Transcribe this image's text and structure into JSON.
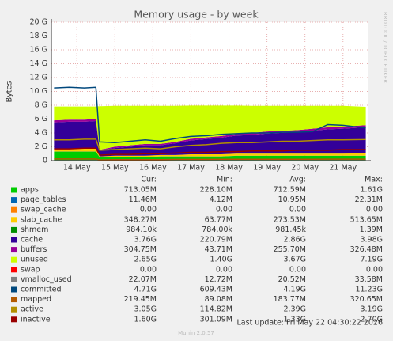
{
  "chart_data": {
    "type": "area",
    "title": "Memory usage - by week",
    "y_label": "Bytes",
    "side_note": "RRDTOOL / TOBI OETIKER",
    "last_update": "Last update: Fri May 22 04:30:22 2026",
    "footer": "Munin 2.0.57",
    "columns": [
      "Cur:",
      "Min:",
      "Avg:",
      "Max:"
    ],
    "x": [
      13.4,
      13.8,
      14.2,
      14.5,
      14.6,
      15.0,
      15.4,
      15.8,
      16.2,
      16.6,
      17.0,
      17.4,
      17.8,
      18.2,
      18.6,
      19.0,
      19.4,
      19.8,
      20.2,
      20.6,
      21.0,
      21.6
    ],
    "xlim": [
      13.33,
      21.65
    ],
    "xticks": [
      {
        "value": 14,
        "label": "14 May"
      },
      {
        "value": 15,
        "label": "15 May"
      },
      {
        "value": 16,
        "label": "16 May"
      },
      {
        "value": 17,
        "label": "17 May"
      },
      {
        "value": 18,
        "label": "18 May"
      },
      {
        "value": 19,
        "label": "19 May"
      },
      {
        "value": 20,
        "label": "20 May"
      },
      {
        "value": 21,
        "label": "21 May"
      }
    ],
    "ylim": [
      0,
      20
    ],
    "yticks": [
      {
        "value": 0,
        "label": "0"
      },
      {
        "value": 2,
        "label": "2 G"
      },
      {
        "value": 4,
        "label": "4 G"
      },
      {
        "value": 6,
        "label": "6 G"
      },
      {
        "value": 8,
        "label": "8 G"
      },
      {
        "value": 10,
        "label": "10 G"
      },
      {
        "value": 12,
        "label": "12 G"
      },
      {
        "value": 14,
        "label": "14 G"
      },
      {
        "value": 16,
        "label": "16 G"
      },
      {
        "value": 18,
        "label": "18 G"
      },
      {
        "value": 20,
        "label": "20 G"
      }
    ],
    "grid": true,
    "series": [
      {
        "name": "apps",
        "color": "#00cc00",
        "draw": "stack",
        "stats": [
          "713.05M",
          "228.10M",
          "712.59M",
          "1.61G"
        ],
        "values": [
          1.3,
          1.3,
          1.3,
          1.3,
          0.5,
          0.5,
          0.5,
          0.5,
          0.6,
          0.6,
          0.6,
          0.6,
          0.6,
          0.7,
          0.7,
          0.7,
          0.7,
          0.7,
          0.7,
          0.7,
          0.7,
          0.7
        ]
      },
      {
        "name": "page_tables",
        "color": "#0066b3",
        "draw": "stack",
        "stats": [
          "11.46M",
          "4.12M",
          "10.95M",
          "22.31M"
        ],
        "values": [
          0.02,
          0.02,
          0.02,
          0.02,
          0.01,
          0.01,
          0.01,
          0.01,
          0.01,
          0.01,
          0.01,
          0.01,
          0.01,
          0.01,
          0.01,
          0.01,
          0.01,
          0.01,
          0.01,
          0.01,
          0.01,
          0.01
        ]
      },
      {
        "name": "swap_cache",
        "color": "#ff8000",
        "draw": "stack",
        "stats": [
          "0.00",
          "0.00",
          "0.00",
          "0.00"
        ],
        "values": [
          0,
          0,
          0,
          0,
          0,
          0,
          0,
          0,
          0,
          0,
          0,
          0,
          0,
          0,
          0,
          0,
          0,
          0,
          0,
          0,
          0,
          0
        ]
      },
      {
        "name": "slab_cache",
        "color": "#ffcc00",
        "draw": "stack",
        "stats": [
          "348.27M",
          "63.77M",
          "273.53M",
          "513.65M"
        ],
        "values": [
          0.4,
          0.4,
          0.4,
          0.4,
          0.1,
          0.2,
          0.2,
          0.2,
          0.2,
          0.2,
          0.3,
          0.3,
          0.3,
          0.3,
          0.3,
          0.3,
          0.3,
          0.3,
          0.3,
          0.3,
          0.3,
          0.35
        ]
      },
      {
        "name": "shmem",
        "color": "#008f00",
        "draw": "stack",
        "stats": [
          "984.10k",
          "784.00k",
          "981.45k",
          "1.39M"
        ],
        "values": [
          0,
          0,
          0,
          0,
          0,
          0,
          0,
          0,
          0,
          0,
          0,
          0,
          0,
          0,
          0,
          0,
          0,
          0,
          0,
          0,
          0,
          0
        ]
      },
      {
        "name": "cache",
        "color": "#330099",
        "draw": "stack",
        "stats": [
          "3.76G",
          "220.79M",
          "2.86G",
          "3.98G"
        ],
        "values": [
          3.8,
          3.9,
          3.9,
          4.0,
          0.9,
          1.1,
          1.3,
          1.5,
          1.4,
          1.7,
          2.0,
          2.2,
          2.4,
          2.6,
          2.7,
          2.9,
          3.0,
          3.1,
          3.3,
          3.5,
          3.6,
          3.76
        ]
      },
      {
        "name": "buffers",
        "color": "#990099",
        "draw": "stack",
        "stats": [
          "304.75M",
          "43.71M",
          "255.70M",
          "326.48M"
        ],
        "values": [
          0.3,
          0.3,
          0.3,
          0.3,
          0.05,
          0.2,
          0.2,
          0.2,
          0.2,
          0.2,
          0.25,
          0.25,
          0.25,
          0.25,
          0.3,
          0.3,
          0.3,
          0.3,
          0.3,
          0.3,
          0.3,
          0.3
        ]
      },
      {
        "name": "unused",
        "color": "#ccff00",
        "draw": "stack",
        "stats": [
          "2.65G",
          "1.40G",
          "3.67G",
          "7.19G"
        ],
        "values": [
          2.0,
          1.9,
          1.9,
          1.8,
          6.3,
          5.9,
          5.7,
          5.5,
          5.5,
          5.2,
          4.8,
          4.6,
          4.4,
          4.1,
          3.9,
          3.7,
          3.6,
          3.5,
          3.3,
          3.1,
          3.0,
          2.65
        ]
      },
      {
        "name": "swap",
        "color": "#ff0000",
        "draw": "stack",
        "stats": [
          "0.00",
          "0.00",
          "0.00",
          "0.00"
        ],
        "values": [
          0,
          0,
          0,
          0,
          0,
          0,
          0,
          0,
          0,
          0,
          0,
          0,
          0,
          0,
          0,
          0,
          0,
          0,
          0,
          0,
          0,
          0
        ]
      },
      {
        "name": "vmalloc_used",
        "color": "#808080",
        "draw": "line",
        "stats": [
          "22.07M",
          "12.72M",
          "20.52M",
          "33.58M"
        ],
        "values": [
          0.02,
          0.02,
          0.02,
          0.02,
          0.01,
          0.02,
          0.02,
          0.02,
          0.02,
          0.02,
          0.02,
          0.02,
          0.02,
          0.02,
          0.02,
          0.02,
          0.02,
          0.02,
          0.02,
          0.02,
          0.02,
          0.02
        ]
      },
      {
        "name": "committed",
        "color": "#00487d",
        "draw": "line",
        "stats": [
          "4.71G",
          "609.43M",
          "4.19G",
          "11.23G"
        ],
        "values": [
          10.5,
          10.6,
          10.5,
          10.6,
          2.7,
          2.6,
          2.8,
          3.0,
          2.8,
          3.2,
          3.5,
          3.6,
          3.8,
          3.9,
          4.0,
          4.0,
          4.1,
          4.1,
          4.2,
          5.2,
          5.1,
          4.71
        ]
      },
      {
        "name": "mapped",
        "color": "#b35a00",
        "draw": "line",
        "stats": [
          "219.45M",
          "89.08M",
          "183.77M",
          "320.65M"
        ],
        "values": [
          0.25,
          0.25,
          0.25,
          0.25,
          0.1,
          0.15,
          0.15,
          0.15,
          0.15,
          0.18,
          0.18,
          0.18,
          0.2,
          0.2,
          0.2,
          0.2,
          0.2,
          0.2,
          0.2,
          0.22,
          0.22,
          0.22
        ]
      },
      {
        "name": "active",
        "color": "#b38f00",
        "draw": "line",
        "stats": [
          "3.05G",
          "114.82M",
          "2.39G",
          "3.19G"
        ],
        "values": [
          3.0,
          3.0,
          3.1,
          3.1,
          1.5,
          1.6,
          1.7,
          1.8,
          1.7,
          2.0,
          2.2,
          2.3,
          2.5,
          2.6,
          2.6,
          2.7,
          2.8,
          2.8,
          2.9,
          3.0,
          3.0,
          3.05
        ]
      },
      {
        "name": "inactive",
        "color": "#990000",
        "draw": "line",
        "stats": [
          "1.60G",
          "301.09M",
          "1.33G",
          "2.70G"
        ],
        "values": [
          1.7,
          1.7,
          1.8,
          1.8,
          0.8,
          0.9,
          0.9,
          1.0,
          1.0,
          1.1,
          1.2,
          1.2,
          1.3,
          1.3,
          1.4,
          1.4,
          1.4,
          1.5,
          1.5,
          1.5,
          1.6,
          1.6
        ]
      }
    ]
  }
}
